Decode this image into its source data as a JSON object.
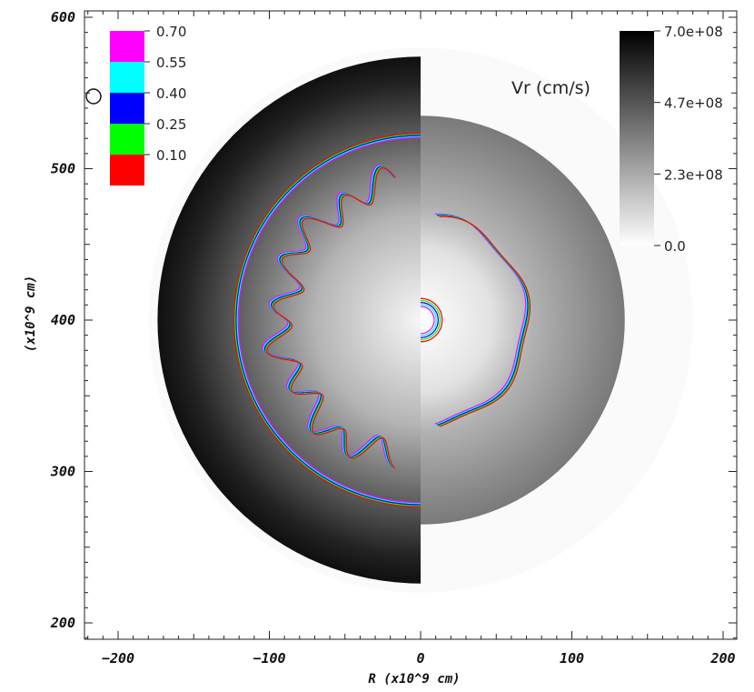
{
  "chart_data": {
    "type": "heatmap",
    "xlabel": "R (x10^9 cm)",
    "ylabel": "(x10^9 cm)",
    "xlim": [
      -220,
      210
    ],
    "ylim": [
      190,
      610
    ],
    "xticks": [
      {
        "value": -200,
        "label": "−200"
      },
      {
        "value": -100,
        "label": "−100"
      },
      {
        "value": 0,
        "label": "0"
      },
      {
        "value": 100,
        "label": "100"
      },
      {
        "value": 200,
        "label": "200"
      }
    ],
    "yticks": [
      {
        "value": 200,
        "label": "200"
      },
      {
        "value": 300,
        "label": "300"
      },
      {
        "value": 400,
        "label": "400"
      },
      {
        "value": 500,
        "label": "500"
      },
      {
        "value": 600,
        "label": "600"
      }
    ],
    "center": [
      0,
      400
    ],
    "left_half_outer_radius": 174,
    "right_half_outer_radius": 135,
    "shock_radius": 122,
    "right_front_radius": 70,
    "core_radius": 9,
    "contour_legend": {
      "entries": [
        {
          "label": "0.70",
          "color": "#ff00ff"
        },
        {
          "label": "0.55",
          "color": "#00ffff"
        },
        {
          "label": "0.40",
          "color": "#0000ff"
        },
        {
          "label": "0.25",
          "color": "#00ff00"
        },
        {
          "label": "0.10",
          "color": "#ff0000"
        }
      ]
    },
    "colorbar": {
      "title": "Vr (cm/s)",
      "min": 0,
      "max": 700000000,
      "ticks": [
        "7.0e+08",
        "4.7e+08",
        "2.3e+08",
        "0.0"
      ]
    }
  }
}
